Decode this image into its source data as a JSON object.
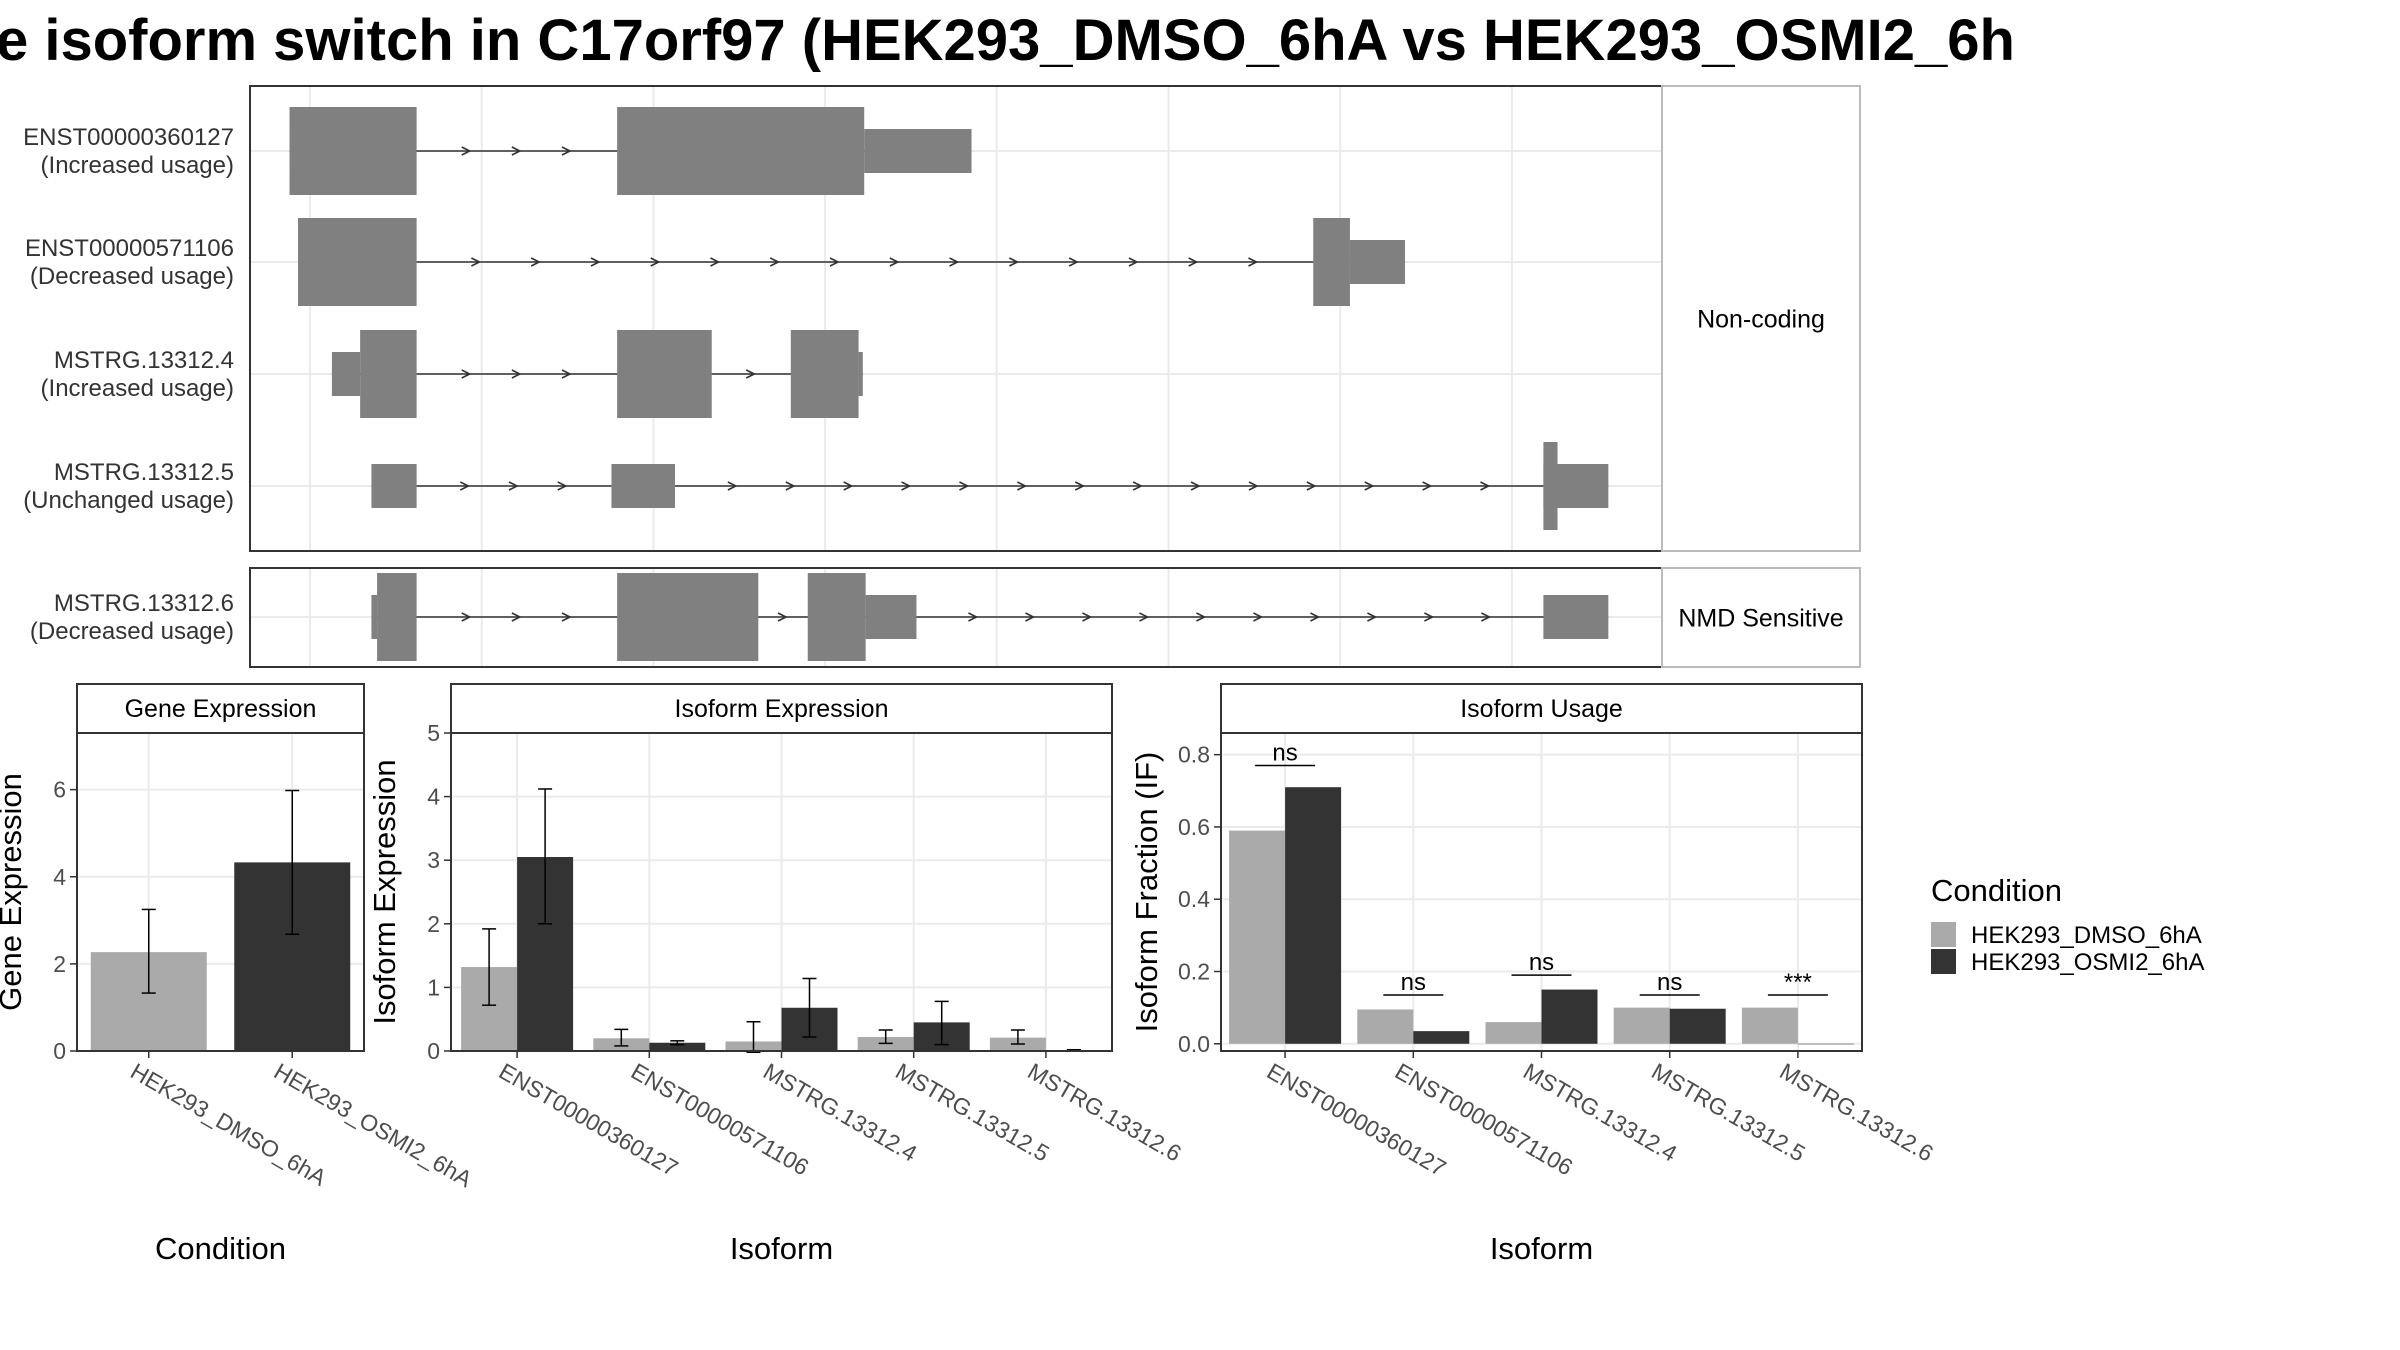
{
  "title": "e isoform switch in C17orf97 (HEK293_DMSO_6hA vs HEK293_OSMI2_6h",
  "colors": {
    "exon": "#808080",
    "dmso": "#aaaaaa",
    "osmi": "#333333",
    "grid": "#ebebeb",
    "frame": "#333333",
    "strip_bg": "#ffffff"
  },
  "legend": {
    "title": "Condition",
    "items": [
      "HEK293_DMSO_6hA",
      "HEK293_OSMI2_6hA"
    ]
  },
  "gene_structure": {
    "groups": [
      {
        "label": "Non-coding",
        "transcripts": [
          0,
          1,
          2,
          3
        ]
      },
      {
        "label": "NMD Sensitive",
        "transcripts": [
          4
        ]
      }
    ],
    "transcripts": [
      {
        "id": "ENST00000360127",
        "usage": "(Increased usage)",
        "exons": [
          [
            0.028,
            0.118,
            "cds"
          ],
          [
            0.028,
            0.046,
            "utr"
          ],
          [
            0.26,
            0.435,
            "cds"
          ],
          [
            0.435,
            0.511,
            "utr"
          ]
        ]
      },
      {
        "id": "ENST00000571106",
        "usage": "(Decreased usage)",
        "exons": [
          [
            0.034,
            0.118,
            "cds"
          ],
          [
            0.034,
            0.04,
            "utr"
          ],
          [
            0.753,
            0.779,
            "cds"
          ],
          [
            0.779,
            0.818,
            "utr"
          ]
        ]
      },
      {
        "id": "MSTRG.13312.4",
        "usage": "(Increased usage)",
        "exons": [
          [
            0.078,
            0.118,
            "cds"
          ],
          [
            0.058,
            0.078,
            "utr"
          ],
          [
            0.26,
            0.327,
            "cds"
          ],
          [
            0.383,
            0.431,
            "cds"
          ],
          [
            0.431,
            0.434,
            "utr"
          ]
        ]
      },
      {
        "id": "MSTRG.13312.5",
        "usage": "(Unchanged usage)",
        "exons": [
          [
            0.086,
            0.118,
            "utr"
          ],
          [
            0.256,
            0.301,
            "utr"
          ],
          [
            0.916,
            0.926,
            "cds"
          ],
          [
            0.916,
            0.962,
            "utr"
          ]
        ]
      },
      {
        "id": "MSTRG.13312.6",
        "usage": "(Decreased usage)",
        "exons": [
          [
            0.09,
            0.118,
            "cds"
          ],
          [
            0.086,
            0.09,
            "utr"
          ],
          [
            0.26,
            0.36,
            "cds"
          ],
          [
            0.395,
            0.436,
            "cds"
          ],
          [
            0.436,
            0.472,
            "utr"
          ],
          [
            0.916,
            0.962,
            "utr"
          ]
        ]
      }
    ]
  },
  "chart_data": [
    {
      "type": "bar",
      "title": "Gene Expression",
      "xlabel": "Condition",
      "ylabel": "Gene Expression",
      "ylim": [
        0,
        7.3
      ],
      "yticks": [
        0,
        2,
        4,
        6
      ],
      "categories": [
        "HEK293_DMSO_6hA",
        "HEK293_OSMI2_6hA"
      ],
      "values": [
        2.27,
        4.33
      ],
      "error_low": [
        1.33,
        2.68
      ],
      "error_high": [
        3.25,
        5.98
      ]
    },
    {
      "type": "bar",
      "title": "Isoform Expression",
      "xlabel": "Isoform",
      "ylabel": "Isoform Expression",
      "ylim": [
        0,
        5
      ],
      "yticks": [
        0,
        1,
        2,
        3,
        4,
        5
      ],
      "categories": [
        "ENST00000360127",
        "ENST00000571106",
        "MSTRG.13312.4",
        "MSTRG.13312.5",
        "MSTRG.13312.6"
      ],
      "series": [
        {
          "name": "HEK293_DMSO_6hA",
          "values": [
            1.32,
            0.2,
            0.15,
            0.22,
            0.21
          ],
          "error_low": [
            0.72,
            0.08,
            -0.02,
            0.12,
            0.11
          ],
          "error_high": [
            1.92,
            0.34,
            0.46,
            0.33,
            0.33
          ]
        },
        {
          "name": "HEK293_OSMI2_6hA",
          "values": [
            3.05,
            0.13,
            0.68,
            0.45,
            0.01
          ],
          "error_low": [
            2.0,
            0.1,
            0.22,
            0.1,
            0.0
          ],
          "error_high": [
            4.12,
            0.16,
            1.14,
            0.78,
            0.02
          ]
        }
      ]
    },
    {
      "type": "bar",
      "title": "Isoform Usage",
      "xlabel": "Isoform",
      "ylabel": "Isoform Fraction (IF)",
      "ylim": [
        -0.02,
        0.86
      ],
      "yticks": [
        0.0,
        0.2,
        0.4,
        0.6,
        0.8
      ],
      "yticklabels": [
        "0.0",
        "0.2",
        "0.4",
        "0.6",
        "0.8"
      ],
      "categories": [
        "ENST00000360127",
        "ENST00000571106",
        "MSTRG.13312.4",
        "MSTRG.13312.5",
        "MSTRG.13312.6"
      ],
      "series": [
        {
          "name": "HEK293_DMSO_6hA",
          "values": [
            0.59,
            0.095,
            0.06,
            0.1,
            0.1
          ]
        },
        {
          "name": "HEK293_OSMI2_6hA",
          "values": [
            0.71,
            0.035,
            0.15,
            0.097,
            0.0
          ]
        }
      ],
      "significance": [
        "ns",
        "ns",
        "ns",
        "ns",
        "***"
      ],
      "significance_y": [
        0.77,
        0.135,
        0.19,
        0.135,
        0.135
      ]
    }
  ]
}
